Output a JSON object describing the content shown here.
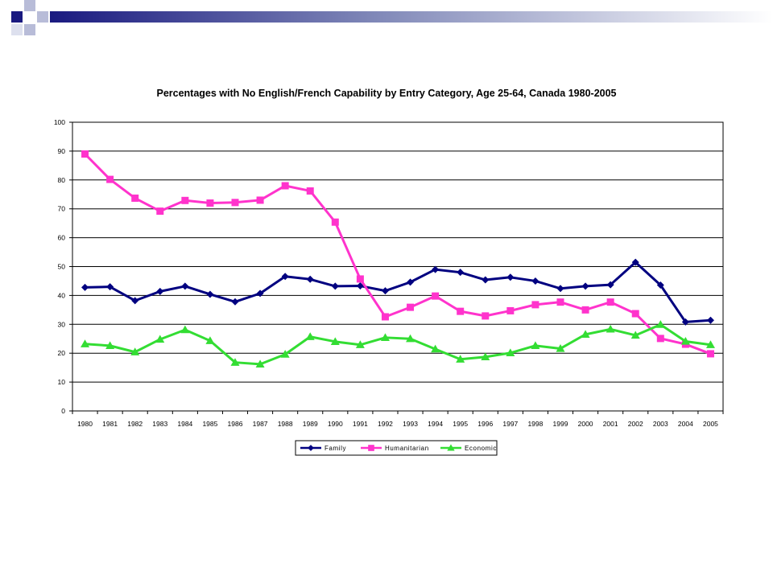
{
  "colors": {
    "header_dark": "#1a1a80",
    "header_light": "#b8bcd8",
    "family": "#000080",
    "humanitarian": "#ff33cc",
    "economic": "#33dd33",
    "grid": "#000000"
  },
  "chart_data": {
    "type": "line",
    "title": "Percentages with No English/French Capability by Entry Category, Age 25-64,  Canada 1980-2005",
    "xlabel": "",
    "ylabel": "",
    "ylim": [
      0,
      100
    ],
    "yticks": [
      0,
      10,
      20,
      30,
      40,
      50,
      60,
      70,
      80,
      90,
      100
    ],
    "grid": true,
    "legend_position": "bottom",
    "categories": [
      "1980",
      "1981",
      "1982",
      "1983",
      "1984",
      "1985",
      "1986",
      "1987",
      "1988",
      "1989",
      "1990",
      "1991",
      "1992",
      "1993",
      "1994",
      "1995",
      "1996",
      "1997",
      "1998",
      "1999",
      "2000",
      "2001",
      "2002",
      "2003",
      "2004",
      "2005"
    ],
    "series": [
      {
        "name": "Family",
        "marker": "diamond",
        "color": "#000080",
        "values": [
          42.8,
          43.0,
          38.2,
          41.4,
          43.2,
          40.4,
          37.8,
          40.7,
          46.6,
          45.6,
          43.2,
          43.3,
          41.6,
          44.6,
          49.0,
          48.0,
          45.4,
          46.3,
          45.0,
          42.4,
          43.2,
          43.7,
          51.5,
          43.6,
          30.8,
          31.4
        ]
      },
      {
        "name": "Humanitarian",
        "marker": "square",
        "color": "#ff33cc",
        "values": [
          89.0,
          80.2,
          73.7,
          69.2,
          72.9,
          72.0,
          72.2,
          73.0,
          78.0,
          76.2,
          65.4,
          45.7,
          32.6,
          35.9,
          39.8,
          34.5,
          32.9,
          34.7,
          36.8,
          37.7,
          35.0,
          37.7,
          33.7,
          25.1,
          23.1,
          19.8
        ]
      },
      {
        "name": "Economic",
        "marker": "triangle",
        "color": "#33dd33",
        "values": [
          23.2,
          22.6,
          20.4,
          24.8,
          28.1,
          24.3,
          16.8,
          16.2,
          19.6,
          25.7,
          24.0,
          22.9,
          25.4,
          25.0,
          21.4,
          17.9,
          18.7,
          20.1,
          22.6,
          21.6,
          26.5,
          28.3,
          26.2,
          29.9,
          24.1,
          22.9
        ]
      }
    ]
  }
}
